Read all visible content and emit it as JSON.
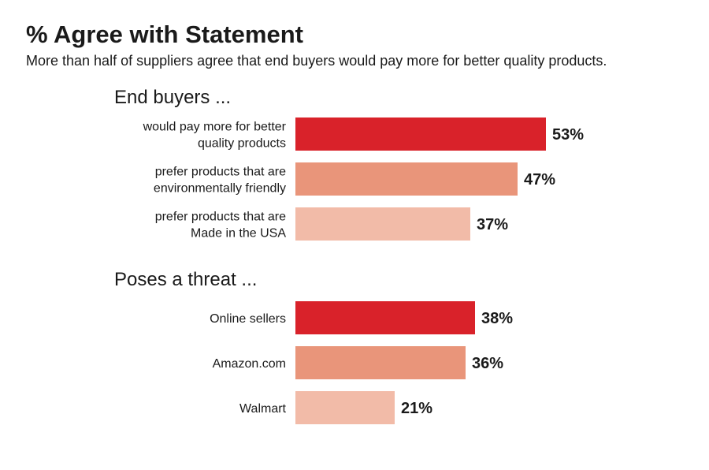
{
  "title": "% Agree with Statement",
  "subtitle": "More than half of suppliers agree that end buyers would pay more for better quality products.",
  "colors": {
    "primary": "#d9222a",
    "secondary": "#e9957a",
    "tertiary": "#f2bba8"
  },
  "chart_data": [
    {
      "type": "bar",
      "orientation": "horizontal",
      "title": "End buyers ...",
      "categories": [
        [
          "would pay more for better",
          "quality products"
        ],
        [
          "prefer products that are",
          "environmentally friendly"
        ],
        [
          "prefer products that are",
          "Made in the USA"
        ]
      ],
      "values": [
        53,
        47,
        37
      ],
      "value_labels": [
        "53%",
        "47%",
        "37%"
      ],
      "xlim": [
        0,
        100
      ],
      "grid": false
    },
    {
      "type": "bar",
      "orientation": "horizontal",
      "title": "Poses a threat ...",
      "categories": [
        [
          "Online sellers"
        ],
        [
          "Amazon.com"
        ],
        [
          "Walmart"
        ]
      ],
      "values": [
        38,
        36,
        21
      ],
      "value_labels": [
        "38%",
        "36%",
        "21%"
      ],
      "xlim": [
        0,
        100
      ],
      "grid": false
    }
  ]
}
